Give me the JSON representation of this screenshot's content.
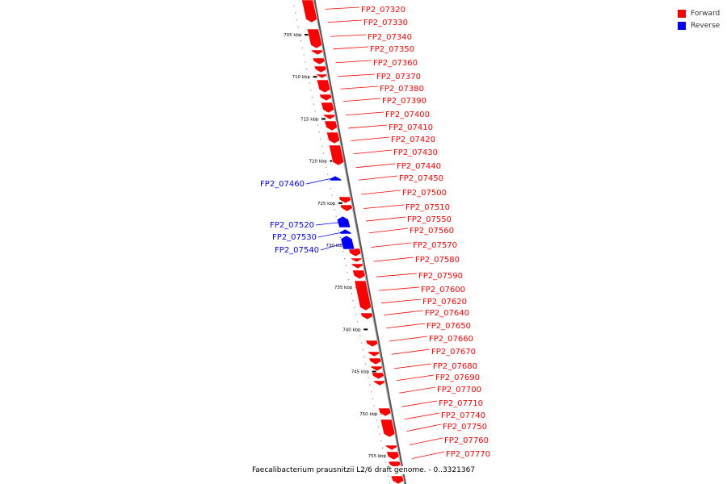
{
  "legend": {
    "forward_label": "Forward",
    "reverse_label": "Reverse",
    "forward_color": "#ff0000",
    "reverse_color": "#0000ff"
  },
  "caption": "Faecalibacterium prausnitzii L2/6 draft genome. - 0..3321367",
  "axis": {
    "unit": "kbp",
    "ticks": [
      705,
      710,
      715,
      720,
      725,
      730,
      735,
      740,
      745,
      750,
      755
    ]
  },
  "forward_genes": [
    "FP2_07320",
    "FP2_07330",
    "FP2_07340",
    "FP2_07350",
    "FP2_07360",
    "FP2_07370",
    "FP2_07380",
    "FP2_07390",
    "FP2_07400",
    "FP2_07410",
    "FP2_07420",
    "FP2_07430",
    "FP2_07440",
    "FP2_07450",
    "FP2_07500",
    "FP2_07510",
    "FP2_07550",
    "FP2_07560",
    "FP2_07570",
    "FP2_07580",
    "FP2_07590",
    "FP2_07600",
    "FP2_07620",
    "FP2_07640",
    "FP2_07650",
    "FP2_07660",
    "FP2_07670",
    "FP2_07680",
    "FP2_07690",
    "FP2_07700",
    "FP2_07710",
    "FP2_07740",
    "FP2_07750",
    "FP2_07760",
    "FP2_07770"
  ],
  "reverse_genes": [
    "FP2_07460",
    "FP2_07520",
    "FP2_07530",
    "FP2_07540"
  ]
}
